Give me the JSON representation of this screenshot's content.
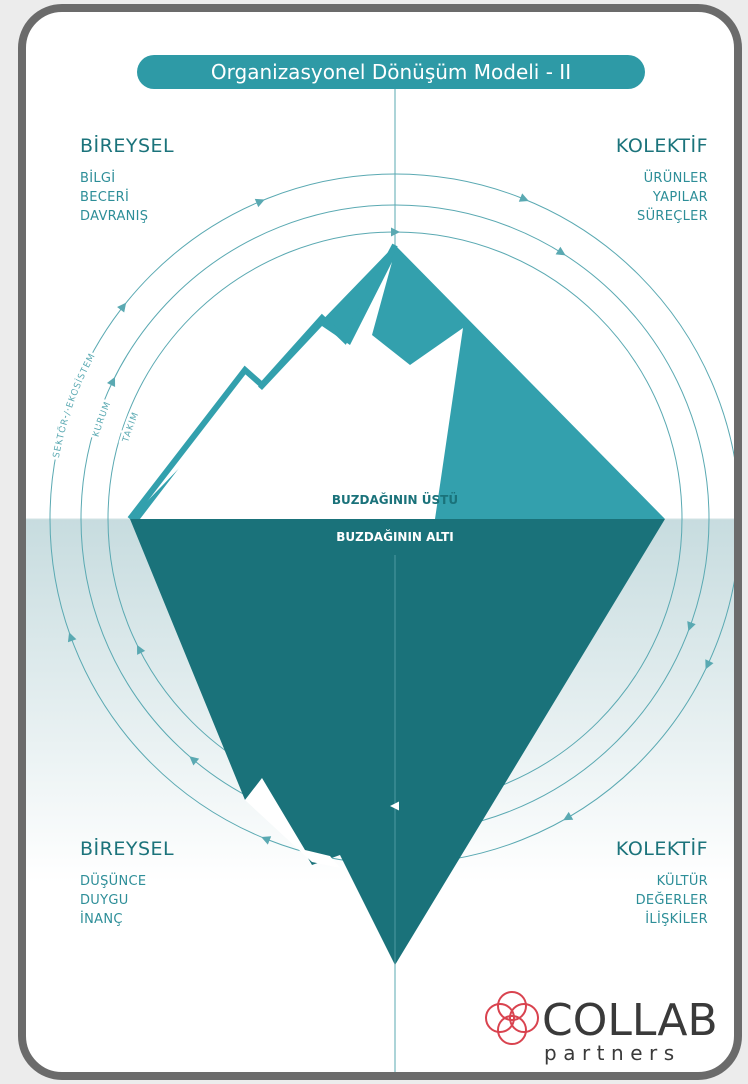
{
  "title": "Organizasyonel Dönüşüm Modeli - II",
  "quadrants": [
    {
      "heading": "BİREYSEL",
      "items": [
        "BİLGİ",
        "BECERİ",
        "DAVRANIŞ"
      ]
    },
    {
      "heading": "KOLEKTİF",
      "items": [
        "ÜRÜNLER",
        "YAPILAR",
        "SÜREÇLER"
      ]
    },
    {
      "heading": "BİREYSEL",
      "items": [
        "DÜŞÜNCE",
        "DUYGU",
        "İNANÇ"
      ]
    },
    {
      "heading": "KOLEKTİF",
      "items": [
        "KÜLTÜR",
        "DEĞERLER",
        "İLİŞKİLER"
      ]
    }
  ],
  "waterline": {
    "above": "BUZDAĞININ ÜSTÜ",
    "below": "BUZDAĞININ ALTI"
  },
  "circles": [
    "TAKIM",
    "KURUM",
    "SEKTÖR / EKOSİSTEM"
  ],
  "logo": {
    "name": "COLLAB",
    "tagline": "partners"
  }
}
